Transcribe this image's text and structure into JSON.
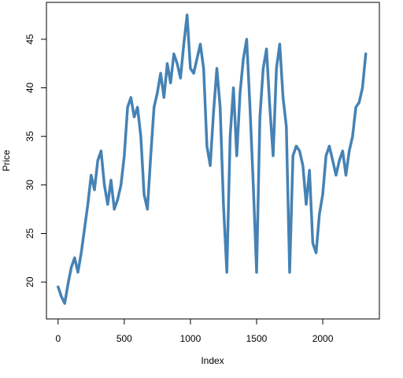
{
  "chart_data": {
    "type": "line",
    "xlabel": "Index",
    "ylabel": "Price",
    "xlim": [
      -88,
      2428
    ],
    "ylim": [
      16.2,
      48.8
    ],
    "xticks": [
      0,
      500,
      1000,
      1500,
      2000
    ],
    "xtick_labels": [
      "0",
      "500",
      "1000",
      "1500",
      "2000"
    ],
    "yticks": [
      20,
      25,
      30,
      35,
      40,
      45
    ],
    "ytick_labels": [
      "20",
      "25",
      "30",
      "35",
      "40",
      "45"
    ],
    "grid": false,
    "line_color": "#4682B4",
    "series": [
      {
        "x": [
          0,
          25,
          50,
          75,
          100,
          125,
          150,
          175,
          200,
          225,
          250,
          275,
          300,
          325,
          350,
          375,
          400,
          425,
          450,
          475,
          500,
          525,
          550,
          575,
          600,
          625,
          650,
          675,
          700,
          725,
          750,
          775,
          800,
          825,
          850,
          875,
          900,
          925,
          950,
          975,
          1000,
          1025,
          1050,
          1075,
          1100,
          1125,
          1150,
          1175,
          1200,
          1225,
          1250,
          1275,
          1300,
          1325,
          1350,
          1375,
          1400,
          1425,
          1450,
          1475,
          1500,
          1525,
          1550,
          1575,
          1600,
          1625,
          1650,
          1675,
          1700,
          1725,
          1750,
          1775,
          1800,
          1825,
          1850,
          1875,
          1900,
          1925,
          1950,
          1975,
          2000,
          2025,
          2050,
          2075,
          2100,
          2125,
          2150,
          2175,
          2200,
          2225,
          2250,
          2275,
          2300,
          2325
        ],
        "y": [
          19.5,
          18.5,
          17.8,
          19.8,
          21.5,
          22.5,
          21.0,
          23.0,
          25.5,
          28.0,
          31.0,
          29.5,
          32.5,
          33.5,
          30.0,
          28.0,
          30.5,
          27.5,
          28.5,
          30.0,
          33.0,
          38.0,
          39.0,
          37.0,
          38.0,
          35.0,
          29.0,
          27.5,
          33.0,
          38.0,
          39.5,
          41.5,
          39.0,
          42.5,
          40.5,
          43.5,
          42.5,
          41.0,
          44.5,
          47.5,
          42.0,
          41.5,
          43.0,
          44.5,
          42.0,
          34.0,
          32.0,
          37.5,
          42.0,
          38.0,
          28.0,
          21.0,
          35.0,
          40.0,
          33.0,
          39.5,
          43.0,
          45.0,
          38.0,
          30.0,
          21.0,
          37.0,
          42.0,
          44.0,
          38.0,
          33.0,
          42.0,
          44.5,
          39.0,
          36.0,
          21.0,
          33.0,
          34.0,
          33.5,
          32.0,
          28.0,
          31.5,
          24.0,
          23.0,
          27.0,
          29.0,
          33.0,
          34.0,
          32.5,
          31.0,
          32.5,
          33.5,
          31.0,
          33.5,
          35.0,
          38.0,
          38.5,
          40.0,
          43.5
        ]
      }
    ]
  }
}
